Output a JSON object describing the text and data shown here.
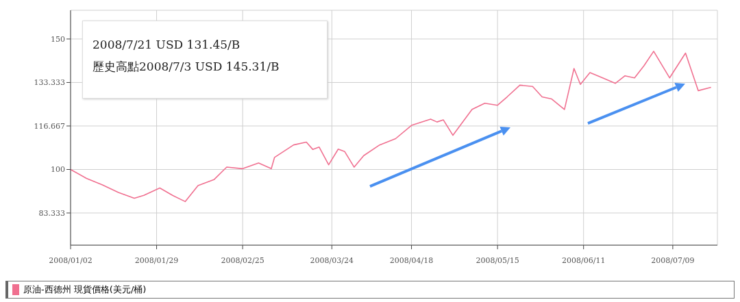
{
  "chart_data": {
    "type": "line",
    "annotations": [
      "2008/7/21 USD 131.45/B",
      "歷史高點2008/7/3 USD 145.31/B"
    ],
    "series": [
      {
        "name": "原油-西德州 現貨價格(美元/桶)",
        "color": "#f07090",
        "x": [
          "2008-01-02",
          "2008-01-07",
          "2008-01-12",
          "2008-01-17",
          "2008-01-22",
          "2008-01-25",
          "2008-01-30",
          "2008-02-03",
          "2008-02-07",
          "2008-02-11",
          "2008-02-16",
          "2008-02-20",
          "2008-02-25",
          "2008-03-01",
          "2008-03-05",
          "2008-03-06",
          "2008-03-12",
          "2008-03-16",
          "2008-03-18",
          "2008-03-20",
          "2008-03-23",
          "2008-03-26",
          "2008-03-28",
          "2008-03-31",
          "2008-04-03",
          "2008-04-08",
          "2008-04-13",
          "2008-04-18",
          "2008-04-24",
          "2008-04-26",
          "2008-04-28",
          "2008-05-01",
          "2008-05-07",
          "2008-05-11",
          "2008-05-15",
          "2008-05-18",
          "2008-05-22",
          "2008-05-26",
          "2008-05-29",
          "2008-06-01",
          "2008-06-05",
          "2008-06-08",
          "2008-06-10",
          "2008-06-13",
          "2008-06-17",
          "2008-06-21",
          "2008-06-24",
          "2008-06-27",
          "2008-06-30",
          "2008-07-03",
          "2008-07-08",
          "2008-07-13",
          "2008-07-17",
          "2008-07-21"
        ],
        "values": [
          100,
          96.6,
          94.1,
          91.2,
          89,
          90.1,
          92.9,
          90.1,
          87.7,
          93.8,
          96.1,
          100.9,
          100.3,
          102.5,
          100.3,
          104.6,
          109.4,
          110.5,
          107.7,
          108.6,
          101.8,
          107.8,
          106.9,
          100.9,
          105.3,
          109.4,
          111.8,
          116.9,
          119.3,
          118.2,
          119,
          113.1,
          123,
          125.4,
          124.6,
          127.8,
          132.3,
          131.8,
          127.8,
          127,
          123,
          138.7,
          132.6,
          137.1,
          135.1,
          133,
          135.9,
          135.1,
          139.8,
          145.3,
          135.1,
          144.6,
          130.2,
          131.5
        ]
      }
    ],
    "xlim": [
      "2008-01-02",
      "2008-07-23"
    ],
    "xticks": [
      {
        "value": "2008-01-02",
        "label": "2008/01/02"
      },
      {
        "value": "2008-01-29",
        "label": "2008/01/29"
      },
      {
        "value": "2008-02-25",
        "label": "2008/02/25"
      },
      {
        "value": "2008-03-24",
        "label": "2008/03/24"
      },
      {
        "value": "2008-04-18",
        "label": "2008/04/18"
      },
      {
        "value": "2008-05-15",
        "label": "2008/05/15"
      },
      {
        "value": "2008-06-11",
        "label": "2008/06/11"
      },
      {
        "value": "2008-07-09",
        "label": "2008/07/09"
      }
    ],
    "ylim": [
      71,
      161
    ],
    "yticks": [
      83.333,
      100,
      116.667,
      133.333,
      150
    ],
    "grid": true,
    "legend": "bottom"
  }
}
